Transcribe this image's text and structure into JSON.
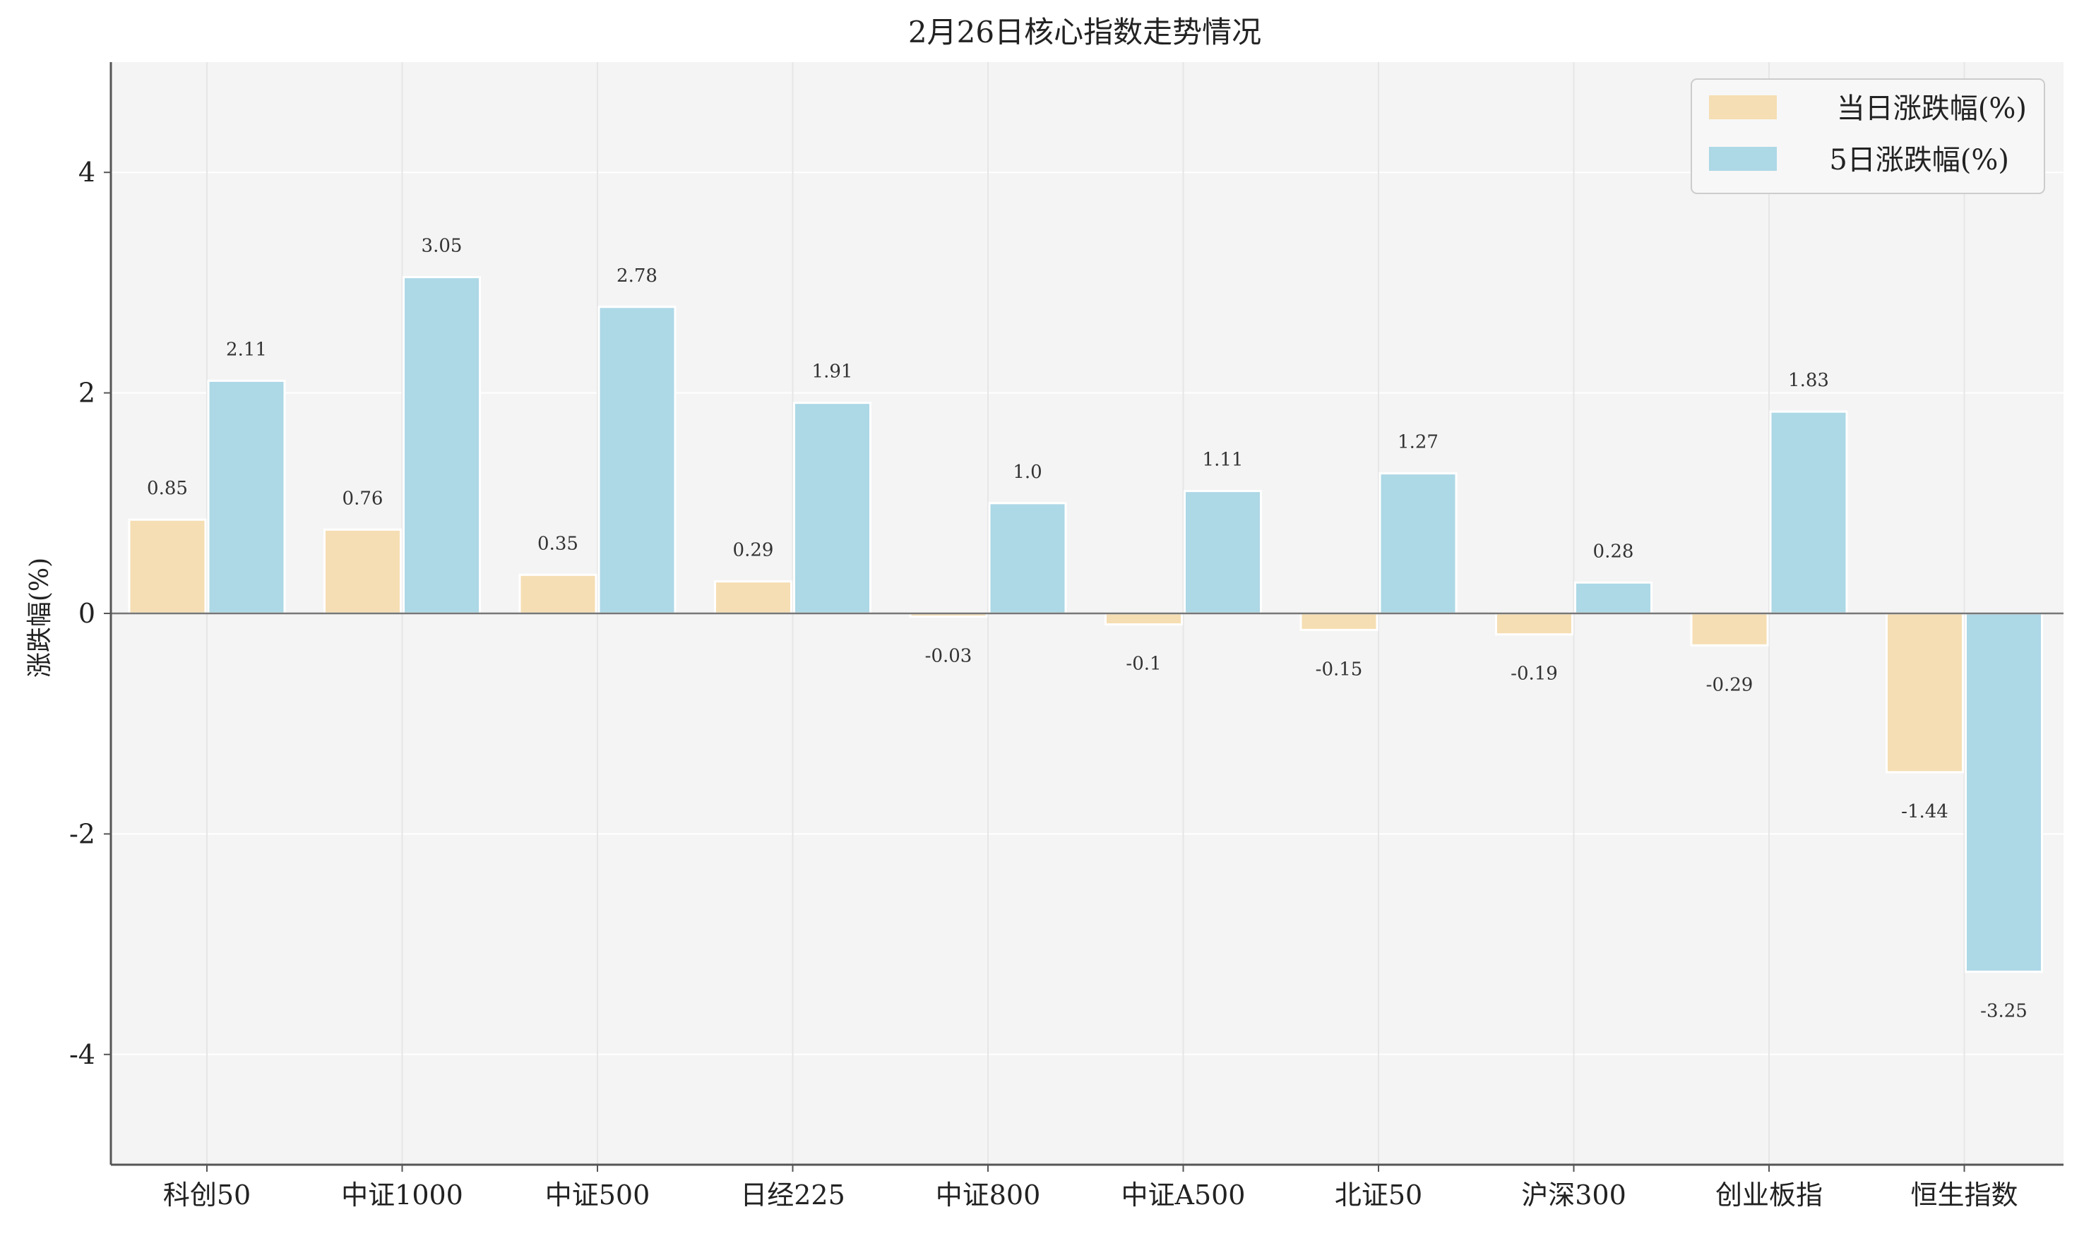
{
  "chart_data": {
    "type": "bar",
    "title": "2月26日核心指数走势情况",
    "xlabel": "",
    "ylabel": "涨跌幅(%)",
    "ylim": [
      -5,
      5
    ],
    "yticks": [
      -4,
      -2,
      0,
      2,
      4
    ],
    "grid": true,
    "legend_position": "top-right",
    "categories": [
      "科创50",
      "中证1000",
      "中证500",
      "日经225",
      "中证800",
      "中证A500",
      "北证50",
      "沪深300",
      "创业板指",
      "恒生指数"
    ],
    "series": [
      {
        "name": "当日涨跌幅(%)",
        "color": "#f5deb3",
        "values": [
          0.85,
          0.76,
          0.35,
          0.29,
          -0.03,
          -0.1,
          -0.15,
          -0.19,
          -0.29,
          -1.44
        ],
        "labels": [
          "0.85",
          "0.76",
          "0.35",
          "0.29",
          "-0.03",
          "-0.1",
          "-0.15",
          "-0.19",
          "-0.29",
          "-1.44"
        ]
      },
      {
        "name": "5日涨跌幅(%)",
        "color": "#add8e6",
        "values": [
          2.11,
          3.05,
          2.78,
          1.91,
          1.0,
          1.11,
          1.27,
          0.28,
          1.83,
          -3.25
        ],
        "labels": [
          "2.11",
          "3.05",
          "2.78",
          "1.91",
          "1.0",
          "1.11",
          "1.27",
          "0.28",
          "1.83",
          "-3.25"
        ]
      }
    ],
    "colors": {
      "plot_background": "#f4f4f4",
      "grid": "#e6e6e6",
      "axis": "#555555",
      "zero_line": "#777777"
    }
  }
}
